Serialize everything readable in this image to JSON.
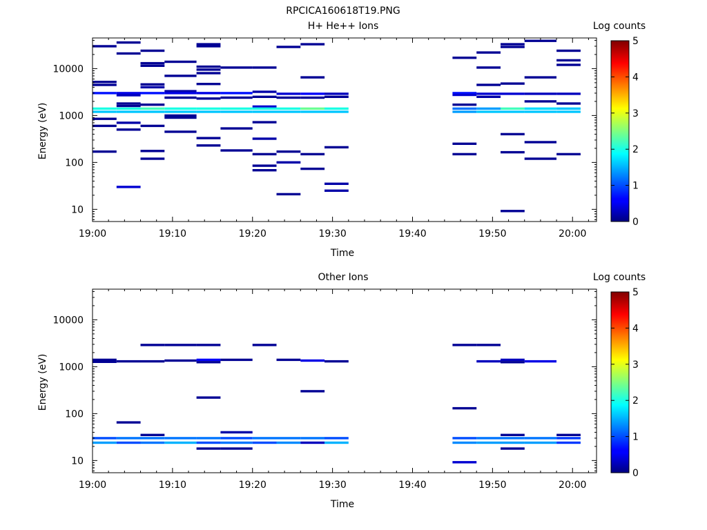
{
  "figure": {
    "title": "RPCICA160618T19.PNG"
  },
  "chart_data": [
    {
      "type": "heatmap",
      "title": "H+ He++ Ions",
      "xlabel": "Time",
      "ylabel": "Energy (eV)",
      "y_scale": "log",
      "xlim": [
        "19:00",
        "20:03"
      ],
      "ylim": [
        5.5,
        45000
      ],
      "x_ticks": [
        "19:00",
        "19:10",
        "19:20",
        "19:30",
        "19:40",
        "19:50",
        "20:00"
      ],
      "y_ticks": [
        "10",
        "100",
        "1000",
        "10000"
      ],
      "colorbar": {
        "label": "Log counts",
        "range": [
          0,
          5
        ],
        "ticks": [
          "0",
          "1",
          "2",
          "3",
          "4",
          "5"
        ]
      },
      "grid": false,
      "cells": [
        [
          "19:00",
          "19:03",
          3000,
          0.7
        ],
        [
          "19:00",
          "19:03",
          1400,
          2.0
        ],
        [
          "19:00",
          "19:03",
          1200,
          1.6
        ],
        [
          "19:00",
          "19:03",
          30000,
          0.1
        ],
        [
          "19:00",
          "19:03",
          5200,
          0.1
        ],
        [
          "19:00",
          "19:03",
          4500,
          0.1
        ],
        [
          "19:00",
          "19:03",
          850,
          0.1
        ],
        [
          "19:00",
          "19:03",
          600,
          0.1
        ],
        [
          "19:00",
          "19:03",
          170,
          0.1
        ],
        [
          "19:03",
          "19:06",
          3000,
          0.5
        ],
        [
          "19:03",
          "19:06",
          2700,
          0.3
        ],
        [
          "19:03",
          "19:06",
          1400,
          2.0
        ],
        [
          "19:03",
          "19:06",
          1200,
          1.6
        ],
        [
          "19:03",
          "19:06",
          36000,
          0.1
        ],
        [
          "19:03",
          "19:06",
          21000,
          0.1
        ],
        [
          "19:03",
          "19:06",
          1800,
          0.1
        ],
        [
          "19:03",
          "19:06",
          1600,
          0.1
        ],
        [
          "19:03",
          "19:06",
          700,
          0.2
        ],
        [
          "19:03",
          "19:06",
          500,
          0.1
        ],
        [
          "19:03",
          "19:06",
          30,
          0.4
        ],
        [
          "19:06",
          "19:09",
          3000,
          0.7
        ],
        [
          "19:06",
          "19:09",
          1400,
          2.2
        ],
        [
          "19:06",
          "19:09",
          1200,
          1.6
        ],
        [
          "19:06",
          "19:09",
          24000,
          0.1
        ],
        [
          "19:06",
          "19:09",
          13000,
          0.1
        ],
        [
          "19:06",
          "19:09",
          11500,
          0.1
        ],
        [
          "19:06",
          "19:09",
          4600,
          0.1
        ],
        [
          "19:06",
          "19:09",
          4000,
          0.2
        ],
        [
          "19:06",
          "19:09",
          1700,
          0.1
        ],
        [
          "19:06",
          "19:09",
          600,
          0.1
        ],
        [
          "19:06",
          "19:09",
          175,
          0.1
        ],
        [
          "19:06",
          "19:09",
          120,
          0.1
        ],
        [
          "19:09",
          "19:13",
          3300,
          0.2
        ],
        [
          "19:09",
          "19:13",
          3000,
          0.5
        ],
        [
          "19:09",
          "19:13",
          1400,
          2.0
        ],
        [
          "19:09",
          "19:13",
          1200,
          1.6
        ],
        [
          "19:09",
          "19:13",
          14000,
          0.1
        ],
        [
          "19:09",
          "19:13",
          7000,
          0.1
        ],
        [
          "19:09",
          "19:13",
          2400,
          0.1
        ],
        [
          "19:09",
          "19:13",
          1000,
          0.1
        ],
        [
          "19:09",
          "19:13",
          900,
          0.1
        ],
        [
          "19:09",
          "19:13",
          450,
          0.1
        ],
        [
          "19:13",
          "19:16",
          3000,
          0.5
        ],
        [
          "19:13",
          "19:16",
          1400,
          2.0
        ],
        [
          "19:13",
          "19:16",
          1200,
          1.6
        ],
        [
          "19:13",
          "19:16",
          33000,
          0.1
        ],
        [
          "19:13",
          "19:16",
          30000,
          0.1
        ],
        [
          "19:13",
          "19:16",
          11000,
          0.1
        ],
        [
          "19:13",
          "19:16",
          9500,
          0.1
        ],
        [
          "19:13",
          "19:16",
          8000,
          0.1
        ],
        [
          "19:13",
          "19:16",
          4700,
          0.1
        ],
        [
          "19:13",
          "19:16",
          2300,
          0.1
        ],
        [
          "19:13",
          "19:16",
          330,
          0.1
        ],
        [
          "19:13",
          "19:16",
          230,
          0.1
        ],
        [
          "19:16",
          "19:20",
          3000,
          0.7
        ],
        [
          "19:16",
          "19:20",
          1400,
          2.0
        ],
        [
          "19:16",
          "19:20",
          1200,
          1.6
        ],
        [
          "19:16",
          "19:20",
          10500,
          0.1
        ],
        [
          "19:16",
          "19:20",
          2400,
          0.1
        ],
        [
          "19:16",
          "19:20",
          530,
          0.1
        ],
        [
          "19:16",
          "19:20",
          180,
          0.1
        ],
        [
          "19:20",
          "19:23",
          3200,
          0.2
        ],
        [
          "19:20",
          "19:23",
          2500,
          0.1
        ],
        [
          "19:20",
          "19:23",
          1550,
          0.4
        ],
        [
          "19:20",
          "19:23",
          1400,
          2.0
        ],
        [
          "19:20",
          "19:23",
          1200,
          1.6
        ],
        [
          "19:20",
          "19:23",
          10500,
          0.1
        ],
        [
          "19:20",
          "19:23",
          720,
          0.1
        ],
        [
          "19:20",
          "19:23",
          320,
          0.2
        ],
        [
          "19:20",
          "19:23",
          150,
          0.1
        ],
        [
          "19:20",
          "19:23",
          85,
          0.1
        ],
        [
          "19:20",
          "19:23",
          68,
          0.1
        ],
        [
          "19:23",
          "19:26",
          2900,
          0.4
        ],
        [
          "19:23",
          "19:26",
          2400,
          0.1
        ],
        [
          "19:23",
          "19:26",
          1400,
          2.0
        ],
        [
          "19:23",
          "19:26",
          1200,
          1.6
        ],
        [
          "19:23",
          "19:26",
          29000,
          0.1
        ],
        [
          "19:23",
          "19:26",
          170,
          0.1
        ],
        [
          "19:23",
          "19:26",
          100,
          0.2
        ],
        [
          "19:23",
          "19:26",
          21,
          0.1
        ],
        [
          "19:26",
          "19:29",
          2900,
          0.6
        ],
        [
          "19:26",
          "19:29",
          1400,
          2.4
        ],
        [
          "19:26",
          "19:29",
          1200,
          1.6
        ],
        [
          "19:26",
          "19:29",
          33000,
          0.1
        ],
        [
          "19:26",
          "19:29",
          6500,
          0.1
        ],
        [
          "19:26",
          "19:29",
          2400,
          0.1
        ],
        [
          "19:26",
          "19:29",
          150,
          0.1
        ],
        [
          "19:26",
          "19:29",
          73,
          0.1
        ],
        [
          "19:29",
          "19:32",
          2900,
          0.3
        ],
        [
          "19:29",
          "19:32",
          2500,
          0.1
        ],
        [
          "19:29",
          "19:32",
          1400,
          2.0
        ],
        [
          "19:29",
          "19:32",
          1200,
          1.6
        ],
        [
          "19:29",
          "19:32",
          210,
          0.1
        ],
        [
          "19:29",
          "19:32",
          35,
          0.2
        ],
        [
          "19:29",
          "19:32",
          25,
          0.2
        ],
        [
          "19:45",
          "19:48",
          3000,
          0.7
        ],
        [
          "19:45",
          "19:48",
          2750,
          0.4
        ],
        [
          "19:45",
          "19:48",
          1400,
          1.2
        ],
        [
          "19:45",
          "19:48",
          1200,
          1.4
        ],
        [
          "19:45",
          "19:48",
          17000,
          0.1
        ],
        [
          "19:45",
          "19:48",
          1700,
          0.1
        ],
        [
          "19:45",
          "19:48",
          250,
          0.1
        ],
        [
          "19:45",
          "19:48",
          150,
          0.1
        ],
        [
          "19:48",
          "19:51",
          2900,
          0.4
        ],
        [
          "19:48",
          "19:51",
          2500,
          0.2
        ],
        [
          "19:48",
          "19:51",
          1400,
          1.4
        ],
        [
          "19:48",
          "19:51",
          1200,
          1.6
        ],
        [
          "19:48",
          "19:51",
          22000,
          0.1
        ],
        [
          "19:48",
          "19:51",
          10500,
          0.1
        ],
        [
          "19:48",
          "19:51",
          4500,
          0.1
        ],
        [
          "19:51",
          "19:54",
          2900,
          0.4
        ],
        [
          "19:51",
          "19:54",
          1400,
          2.2
        ],
        [
          "19:51",
          "19:54",
          1200,
          1.6
        ],
        [
          "19:51",
          "19:54",
          33000,
          0.1
        ],
        [
          "19:51",
          "19:54",
          29000,
          0.1
        ],
        [
          "19:51",
          "19:54",
          4800,
          0.1
        ],
        [
          "19:51",
          "19:54",
          400,
          0.1
        ],
        [
          "19:51",
          "19:54",
          165,
          0.1
        ],
        [
          "19:51",
          "19:54",
          9.2,
          0.1
        ],
        [
          "19:54",
          "19:58",
          2900,
          0.3
        ],
        [
          "19:54",
          "19:58",
          1400,
          1.7
        ],
        [
          "19:54",
          "19:58",
          1200,
          1.6
        ],
        [
          "19:54",
          "19:58",
          39000,
          0.1
        ],
        [
          "19:54",
          "19:58",
          6500,
          0.1
        ],
        [
          "19:54",
          "19:58",
          2000,
          0.1
        ],
        [
          "19:54",
          "19:58",
          270,
          0.1
        ],
        [
          "19:54",
          "19:58",
          120,
          0.1
        ],
        [
          "19:58",
          "20:01",
          2900,
          0.3
        ],
        [
          "19:58",
          "20:01",
          1400,
          1.6
        ],
        [
          "19:58",
          "20:01",
          1200,
          1.6
        ],
        [
          "19:58",
          "20:01",
          24000,
          0.1
        ],
        [
          "19:58",
          "20:01",
          15000,
          0.1
        ],
        [
          "19:58",
          "20:01",
          12000,
          0.1
        ],
        [
          "19:58",
          "20:01",
          1800,
          0.1
        ],
        [
          "19:58",
          "20:01",
          150,
          0.1
        ]
      ]
    },
    {
      "type": "heatmap",
      "title": "Other Ions",
      "xlabel": "Time",
      "ylabel": "Energy (eV)",
      "y_scale": "log",
      "xlim": [
        "19:00",
        "20:03"
      ],
      "ylim": [
        5.5,
        45000
      ],
      "x_ticks": [
        "19:00",
        "19:10",
        "19:20",
        "19:30",
        "19:40",
        "19:50",
        "20:00"
      ],
      "y_ticks": [
        "10",
        "100",
        "1000",
        "10000"
      ],
      "colorbar": {
        "label": "Log counts",
        "range": [
          0,
          5
        ],
        "ticks": [
          "0",
          "1",
          "2",
          "3",
          "4",
          "5"
        ]
      },
      "grid": false,
      "cells": [
        [
          "19:00",
          "19:03",
          30,
          1.0
        ],
        [
          "19:00",
          "19:03",
          24,
          1.4
        ],
        [
          "19:00",
          "19:03",
          1400,
          0.1
        ],
        [
          "19:00",
          "19:03",
          1270,
          0.1
        ],
        [
          "19:03",
          "19:06",
          30,
          1.2
        ],
        [
          "19:03",
          "19:06",
          24,
          1.0
        ],
        [
          "19:03",
          "19:06",
          1300,
          0.1
        ],
        [
          "19:03",
          "19:06",
          65,
          0.1
        ],
        [
          "19:06",
          "19:09",
          35,
          0.1
        ],
        [
          "19:06",
          "19:09",
          30,
          1.2
        ],
        [
          "19:06",
          "19:09",
          24,
          1.2
        ],
        [
          "19:06",
          "19:09",
          2900,
          0.1
        ],
        [
          "19:06",
          "19:09",
          1300,
          0.1
        ],
        [
          "19:09",
          "19:13",
          30,
          1.2
        ],
        [
          "19:09",
          "19:13",
          24,
          1.5
        ],
        [
          "19:09",
          "19:13",
          2900,
          0.1
        ],
        [
          "19:09",
          "19:13",
          1350,
          0.1
        ],
        [
          "19:13",
          "19:16",
          30,
          1.2
        ],
        [
          "19:13",
          "19:16",
          24,
          1.0
        ],
        [
          "19:13",
          "19:16",
          18,
          0.1
        ],
        [
          "19:13",
          "19:16",
          2900,
          0.1
        ],
        [
          "19:13",
          "19:16",
          1400,
          0.6
        ],
        [
          "19:13",
          "19:16",
          1250,
          0.1
        ],
        [
          "19:13",
          "19:16",
          220,
          0.1
        ],
        [
          "19:16",
          "19:20",
          40,
          0.2
        ],
        [
          "19:16",
          "19:20",
          30,
          1.0
        ],
        [
          "19:16",
          "19:20",
          24,
          1.2
        ],
        [
          "19:16",
          "19:20",
          18,
          0.1
        ],
        [
          "19:16",
          "19:20",
          1400,
          0.1
        ],
        [
          "19:20",
          "19:23",
          30,
          1.2
        ],
        [
          "19:20",
          "19:23",
          24,
          1.0
        ],
        [
          "19:20",
          "19:23",
          2900,
          0.1
        ],
        [
          "19:23",
          "19:26",
          30,
          1.2
        ],
        [
          "19:23",
          "19:26",
          24,
          1.3
        ],
        [
          "19:23",
          "19:26",
          1400,
          0.1
        ],
        [
          "19:26",
          "19:29",
          30,
          1.2
        ],
        [
          "19:26",
          "19:29",
          24,
          0.3
        ],
        [
          "19:26",
          "19:29",
          1350,
          0.5
        ],
        [
          "19:26",
          "19:29",
          300,
          0.1
        ],
        [
          "19:29",
          "19:32",
          30,
          1.0
        ],
        [
          "19:29",
          "19:32",
          24,
          1.5
        ],
        [
          "19:29",
          "19:32",
          1300,
          0.1
        ],
        [
          "19:45",
          "19:48",
          30,
          1.0
        ],
        [
          "19:45",
          "19:48",
          24,
          1.3
        ],
        [
          "19:45",
          "19:48",
          2900,
          0.1
        ],
        [
          "19:45",
          "19:48",
          130,
          0.1
        ],
        [
          "19:45",
          "19:48",
          9.2,
          0.4
        ],
        [
          "19:48",
          "19:51",
          30,
          1.2
        ],
        [
          "19:48",
          "19:51",
          24,
          1.4
        ],
        [
          "19:48",
          "19:51",
          2900,
          0.1
        ],
        [
          "19:48",
          "19:51",
          1300,
          0.3
        ],
        [
          "19:51",
          "19:54",
          35,
          0.1
        ],
        [
          "19:51",
          "19:54",
          30,
          1.2
        ],
        [
          "19:51",
          "19:54",
          24,
          1.4
        ],
        [
          "19:51",
          "19:54",
          18,
          0.1
        ],
        [
          "19:51",
          "19:54",
          1400,
          0.3
        ],
        [
          "19:51",
          "19:54",
          1250,
          0.1
        ],
        [
          "19:54",
          "19:58",
          30,
          1.2
        ],
        [
          "19:54",
          "19:58",
          24,
          1.4
        ],
        [
          "19:54",
          "19:58",
          1300,
          0.5
        ],
        [
          "19:58",
          "20:01",
          35,
          0.1
        ],
        [
          "19:58",
          "20:01",
          30,
          0.9
        ],
        [
          "19:58",
          "20:01",
          24,
          0.9
        ]
      ]
    }
  ]
}
